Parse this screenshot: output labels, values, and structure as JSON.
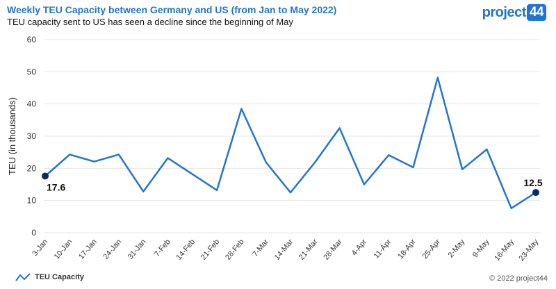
{
  "header": {
    "title": "Weekly TEU Capacity between Germany and US (from Jan to May 2022)",
    "subtitle": "TEU capacity sent to US has seen a decline since the beginning of May"
  },
  "logo": {
    "text": "project",
    "number": "44"
  },
  "legend": {
    "label": "TEU Capacity"
  },
  "footer": {
    "copyright": "© 2022 project44"
  },
  "colors": {
    "line": "#1f74d4",
    "marker": "#0d2c5e",
    "grid": "#e6e6e6",
    "brand": "#1f74d4"
  },
  "chart_data": {
    "type": "line",
    "title": "Weekly TEU Capacity between Germany and US (from Jan to May 2022)",
    "subtitle": "TEU capacity sent to US has seen a decline since the beginning of May",
    "xlabel": "",
    "ylabel": "TEU (in thousands)",
    "ylim": [
      0,
      60
    ],
    "yticks": [
      0,
      10,
      20,
      30,
      40,
      50,
      60
    ],
    "grid": true,
    "categories": [
      "3-Jan",
      "10-Jan",
      "17-Jan",
      "24-Jan",
      "31-Jan",
      "7-Feb",
      "14-Feb",
      "21-Feb",
      "28-Feb",
      "7-Mar",
      "14-Mar",
      "21-Mar",
      "28-Mar",
      "4-Apr",
      "11-Apr",
      "18-Apr",
      "25-Apr",
      "2-May",
      "9-May",
      "16-May",
      "23-May"
    ],
    "series": [
      {
        "name": "TEU Capacity",
        "values": [
          17.6,
          24.3,
          22.1,
          24.3,
          12.8,
          23.2,
          18.2,
          13.2,
          38.5,
          21.9,
          12.5,
          21.9,
          32.5,
          15.0,
          24.1,
          20.3,
          48.2,
          19.7,
          25.9,
          7.6,
          12.5
        ]
      }
    ],
    "annotations": [
      {
        "index": 0,
        "label": "17.6"
      },
      {
        "index": 20,
        "label": "12.5"
      }
    ],
    "legend_position": "bottom-left"
  }
}
